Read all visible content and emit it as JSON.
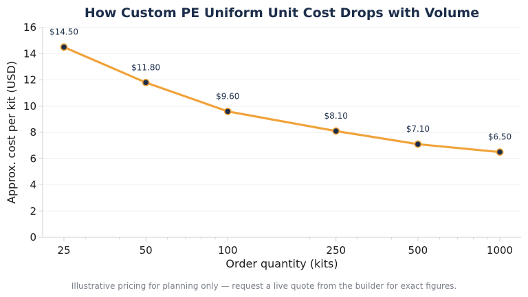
{
  "chart_data": {
    "type": "line",
    "title": "How Custom PE Uniform Unit Cost Drops with Volume",
    "xlabel": "Order quantity (kits)",
    "ylabel": "Approx. cost per kit (USD)",
    "x_scale": "log",
    "x": [
      25,
      50,
      100,
      250,
      500,
      1000
    ],
    "x_tick_labels": [
      "25",
      "50",
      "100",
      "250",
      "500",
      "1000"
    ],
    "y_ticks": [
      "0",
      "2",
      "4",
      "6",
      "8",
      "10",
      "12",
      "14",
      "16"
    ],
    "ylim": [
      0,
      16
    ],
    "grid": "horizontal",
    "series": [
      {
        "values": [
          14.5,
          11.8,
          9.6,
          8.1,
          7.1,
          6.5
        ],
        "data_labels": [
          "$14.50",
          "$11.80",
          "$9.60",
          "$8.10",
          "$7.10",
          "$6.50"
        ],
        "line_color": "#f0a33a",
        "marker_color": "#1c2e4a"
      }
    ]
  },
  "footnote": "Illustrative pricing for planning only — request a live quote from the builder for exact figures."
}
